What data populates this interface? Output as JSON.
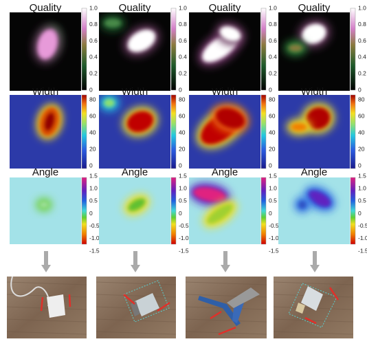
{
  "rows": [
    {
      "title": "Quality",
      "ticks": [
        "1.0",
        "0.8",
        "0.6",
        "0.4",
        "0.2",
        "0"
      ]
    },
    {
      "title": "Width",
      "ticks": [
        "80",
        "60",
        "40",
        "20",
        "0"
      ]
    },
    {
      "title": "Angle",
      "ticks": [
        "1.5",
        "1.0",
        "0.5",
        "0",
        "-0.5",
        "-1.0",
        "-1.5"
      ]
    }
  ]
}
